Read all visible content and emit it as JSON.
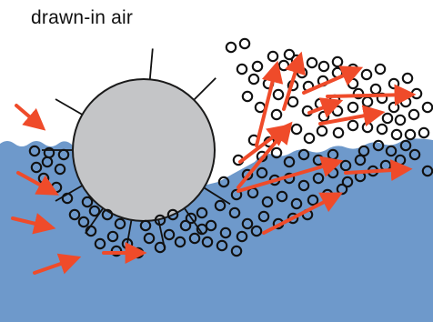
{
  "caption": "drawn-in air",
  "colors": {
    "water": "#6e99cb",
    "water_edge": "#5a86bd",
    "cylinder_fill": "#c4c5c7",
    "cylinder_stroke": "#1a1a1a",
    "bubble_stroke": "#111111",
    "arrow": "#ef4b2a",
    "background": "#ffffff"
  },
  "icons": {
    "bubble": "open-circle",
    "arrow": "flow-arrow",
    "blade": "radial-line"
  }
}
